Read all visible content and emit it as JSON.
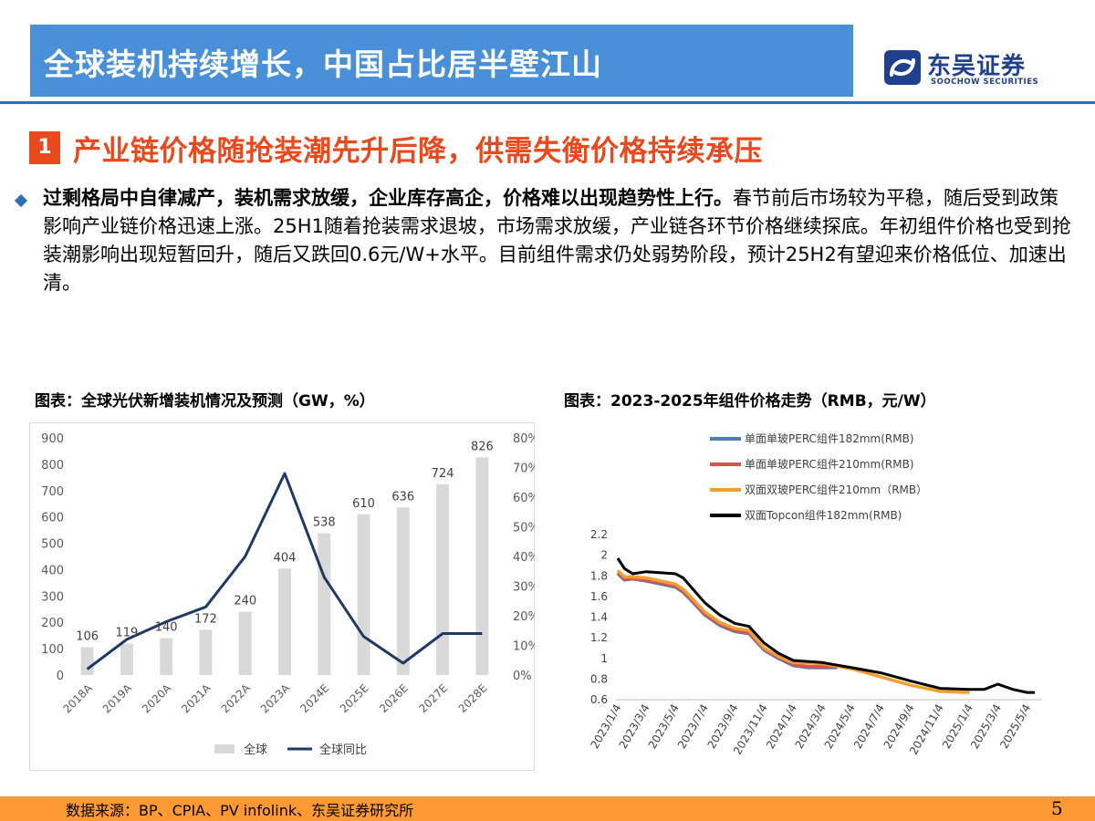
{
  "header": {
    "title": "全球装机持续增长，中国占比居半壁江山",
    "logo_cn": "东吴证券",
    "logo_en": "SOOCHOW SECURITIES"
  },
  "section": {
    "number": "1",
    "title": "产业链价格随抢装潮先升后降，供需失衡价格持续承压"
  },
  "paragraph": {
    "bold": "过剩格局中自律减产，装机需求放缓，企业库存高企，价格难以出现趋势性上行。",
    "rest": "春节前后市场较为平稳，随后受到政策影响产业链价格迅速上涨。25H1随着抢装需求退坡，市场需求放缓，产业链各环节价格继续探底。年初组件价格也受到抢装潮影响出现短暂回升，随后又跌回0.6元/W+水平。目前组件需求仍处弱势阶段，预计25H2有望迎来价格低位、加速出清。"
  },
  "footer": {
    "source": "数据来源：BP、CPIA、PV infolink、东吴证券研究所",
    "page": "5"
  },
  "colors": {
    "title_bar": "#4a90d9",
    "accent": "#e8491d",
    "footer": "#ff9933",
    "bar": "#d9d9d9",
    "line": "#1f3864"
  },
  "chart_data": [
    {
      "type": "bar",
      "title": "图表：全球光伏新增装机情况及预测（GW，%）",
      "categories": [
        "2018A",
        "2019A",
        "2020A",
        "2021A",
        "2022A",
        "2023A",
        "2024E",
        "2025E",
        "2026E",
        "2027E",
        "2028E"
      ],
      "series": [
        {
          "name": "全球",
          "type": "bar",
          "axis": "left",
          "values": [
            106,
            119,
            140,
            172,
            240,
            404,
            538,
            610,
            636,
            724,
            826
          ]
        },
        {
          "name": "全球同比",
          "type": "line",
          "axis": "right",
          "values": [
            0.02,
            0.12,
            0.18,
            0.23,
            0.4,
            0.68,
            0.33,
            0.13,
            0.04,
            0.14,
            0.14
          ]
        }
      ],
      "yleft": {
        "min": 0,
        "max": 900,
        "ticks": [
          0,
          100,
          200,
          300,
          400,
          500,
          600,
          700,
          800,
          900
        ]
      },
      "yright": {
        "min": 0,
        "max": 0.8,
        "ticks": [
          "0%",
          "10%",
          "20%",
          "30%",
          "40%",
          "50%",
          "60%",
          "70%",
          "80%"
        ]
      },
      "legend_position": "bottom",
      "grid": false
    },
    {
      "type": "line",
      "title": "图表：2023-2025年组件价格走势（RMB，元/W）",
      "x_ticks": [
        "2023/1/4",
        "2023/3/4",
        "2023/5/4",
        "2023/7/4",
        "2023/9/4",
        "2023/11/4",
        "2024/1/4",
        "2024/3/4",
        "2024/5/4",
        "2024/7/4",
        "2024/9/4",
        "2024/11/4",
        "2025/1/4",
        "2025/3/4",
        "2025/5/4"
      ],
      "ylim": [
        0.6,
        2.2
      ],
      "y_ticks": [
        "0.6",
        "0.8",
        "1",
        "1.2",
        "1.4",
        "1.6",
        "1.8",
        "2",
        "2.2"
      ],
      "legend_position": "top",
      "grid": false,
      "series": [
        {
          "name": "单面单玻PERC组件182mm(RMB)",
          "color": "#4a7ebb",
          "points": [
            [
              "2023/1/4",
              1.82
            ],
            [
              "2023/1/18",
              1.76
            ],
            [
              "2023/2/4",
              1.77
            ],
            [
              "2023/3/4",
              1.75
            ],
            [
              "2023/4/4",
              1.72
            ],
            [
              "2023/5/4",
              1.69
            ],
            [
              "2023/5/20",
              1.64
            ],
            [
              "2023/6/4",
              1.57
            ],
            [
              "2023/7/4",
              1.42
            ],
            [
              "2023/8/4",
              1.32
            ],
            [
              "2023/9/4",
              1.26
            ],
            [
              "2023/10/4",
              1.24
            ],
            [
              "2023/11/4",
              1.08
            ],
            [
              "2023/12/4",
              1.0
            ],
            [
              "2024/1/4",
              0.93
            ],
            [
              "2024/2/4",
              0.91
            ],
            [
              "2024/3/4",
              0.91
            ],
            [
              "2024/4/4",
              0.91
            ]
          ]
        },
        {
          "name": "单面单玻PERC组件210mm(RMB)",
          "color": "#d9534f",
          "points": [
            [
              "2023/1/4",
              1.83
            ],
            [
              "2023/1/18",
              1.77
            ],
            [
              "2023/2/4",
              1.77
            ],
            [
              "2023/3/4",
              1.76
            ],
            [
              "2023/4/4",
              1.73
            ],
            [
              "2023/5/4",
              1.7
            ],
            [
              "2023/5/20",
              1.65
            ],
            [
              "2023/6/4",
              1.58
            ],
            [
              "2023/7/4",
              1.43
            ],
            [
              "2023/8/4",
              1.33
            ],
            [
              "2023/9/4",
              1.27
            ],
            [
              "2023/10/4",
              1.25
            ],
            [
              "2023/11/4",
              1.09
            ],
            [
              "2023/12/4",
              1.01
            ],
            [
              "2024/1/4",
              0.94
            ],
            [
              "2024/2/4",
              0.92
            ],
            [
              "2024/3/4",
              0.92
            ],
            [
              "2024/4/4",
              0.92
            ]
          ]
        },
        {
          "name": "双面双玻PERC组件210mm（RMB）",
          "color": "#f0a030",
          "points": [
            [
              "2023/1/4",
              1.85
            ],
            [
              "2023/1/18",
              1.79
            ],
            [
              "2023/2/4",
              1.79
            ],
            [
              "2023/3/4",
              1.78
            ],
            [
              "2023/4/4",
              1.75
            ],
            [
              "2023/5/4",
              1.72
            ],
            [
              "2023/5/20",
              1.67
            ],
            [
              "2023/6/4",
              1.6
            ],
            [
              "2023/7/4",
              1.45
            ],
            [
              "2023/8/4",
              1.35
            ],
            [
              "2023/9/4",
              1.29
            ],
            [
              "2023/10/4",
              1.27
            ],
            [
              "2023/11/4",
              1.1
            ],
            [
              "2023/12/4",
              1.02
            ],
            [
              "2024/1/4",
              0.96
            ],
            [
              "2024/3/4",
              0.95
            ],
            [
              "2024/5/4",
              0.9
            ],
            [
              "2024/7/4",
              0.82
            ],
            [
              "2024/9/4",
              0.74
            ],
            [
              "2024/11/4",
              0.68
            ],
            [
              "2025/1/4",
              0.67
            ]
          ]
        },
        {
          "name": "双面Topcon组件182mm(RMB)",
          "color": "#000000",
          "points": [
            [
              "2023/1/4",
              1.97
            ],
            [
              "2023/1/18",
              1.87
            ],
            [
              "2023/2/4",
              1.82
            ],
            [
              "2023/3/4",
              1.84
            ],
            [
              "2023/4/4",
              1.83
            ],
            [
              "2023/5/4",
              1.82
            ],
            [
              "2023/5/20",
              1.78
            ],
            [
              "2023/6/4",
              1.7
            ],
            [
              "2023/7/4",
              1.54
            ],
            [
              "2023/8/4",
              1.42
            ],
            [
              "2023/9/4",
              1.34
            ],
            [
              "2023/10/4",
              1.31
            ],
            [
              "2023/11/4",
              1.15
            ],
            [
              "2023/12/4",
              1.05
            ],
            [
              "2024/1/4",
              0.98
            ],
            [
              "2024/3/4",
              0.96
            ],
            [
              "2024/5/4",
              0.91
            ],
            [
              "2024/7/4",
              0.86
            ],
            [
              "2024/9/4",
              0.78
            ],
            [
              "2024/11/4",
              0.71
            ],
            [
              "2025/1/4",
              0.7
            ],
            [
              "2025/2/4",
              0.7
            ],
            [
              "2025/3/4",
              0.75
            ],
            [
              "2025/4/4",
              0.7
            ],
            [
              "2025/5/4",
              0.67
            ],
            [
              "2025/5/20",
              0.67
            ]
          ]
        }
      ]
    }
  ]
}
